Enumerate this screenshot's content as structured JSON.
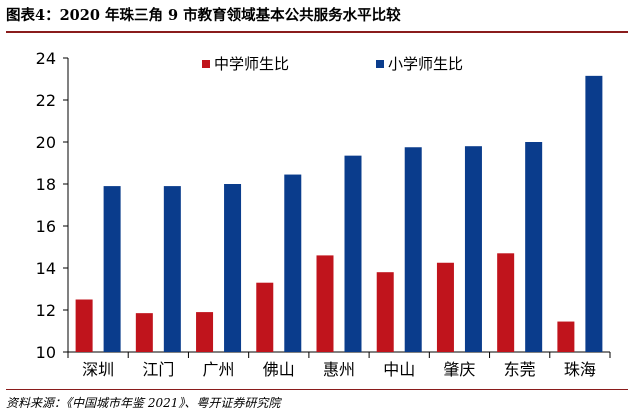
{
  "title": "图表4：2020 年珠三角 9 市教育领域基本公共服务水平比较",
  "source": "资料来源：《中国城市年鉴 2021》、粤开证券研究院",
  "chart_data": {
    "type": "bar",
    "title": "",
    "xlabel": "",
    "ylabel": "",
    "ylim": [
      10,
      24
    ],
    "yticks": [
      10,
      12,
      14,
      16,
      18,
      20,
      22,
      24
    ],
    "categories": [
      "深圳",
      "江门",
      "广州",
      "佛山",
      "惠州",
      "中山",
      "肇庆",
      "东莞",
      "珠海"
    ],
    "series": [
      {
        "name": "中学师生比",
        "color": "#c0141c",
        "values": [
          12.5,
          11.85,
          11.9,
          13.3,
          14.6,
          13.8,
          14.25,
          14.7,
          11.45
        ]
      },
      {
        "name": "小学师生比",
        "color": "#0a3c8c",
        "values": [
          17.9,
          17.9,
          18.0,
          18.45,
          19.35,
          19.75,
          19.8,
          20.0,
          23.15
        ]
      }
    ],
    "legend_position": "top",
    "grid": false
  }
}
